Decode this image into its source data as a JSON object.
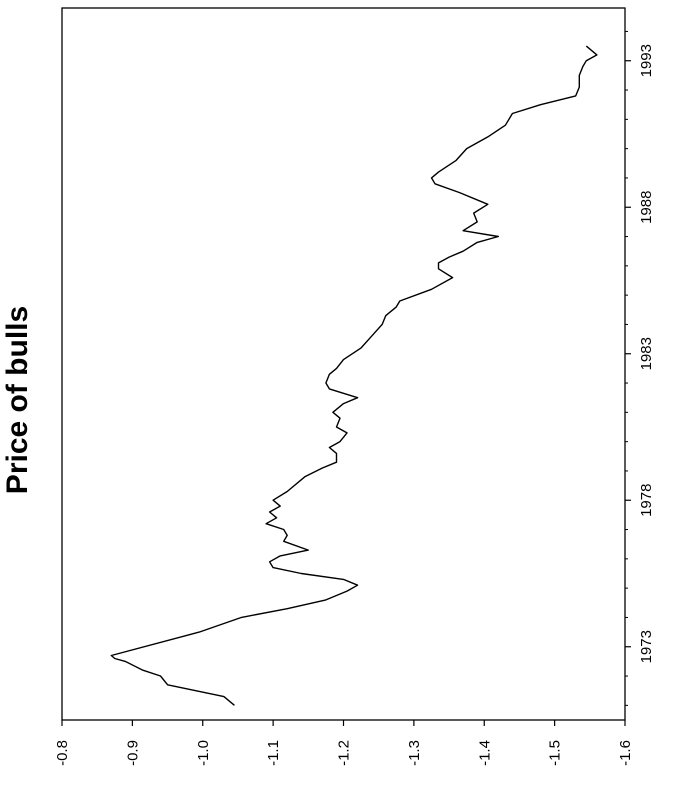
{
  "chart_data": {
    "type": "line",
    "title": "Price of bulls",
    "orientation": "rotated-90-ccw",
    "xlabel": "",
    "ylabel": "",
    "x_ticks": [
      1973,
      1978,
      1983,
      1988,
      1993
    ],
    "y_ticks": [
      "-0.8",
      "-0.9",
      "-1.0",
      "-1.1",
      "-1.2",
      "-1.3",
      "-1.4",
      "-1.5",
      "-1.6"
    ],
    "xlim": [
      1970.5,
      1994.8
    ],
    "ylim": [
      -1.6,
      -0.8
    ],
    "grid": false,
    "line_color": "#000000",
    "series": [
      {
        "x": [
          1971.0,
          1971.3,
          1971.7,
          1972.0,
          1972.2,
          1972.5,
          1972.6,
          1972.7,
          1973.5,
          1974.0,
          1974.3,
          1974.6,
          1974.9,
          1975.1,
          1975.3,
          1975.5,
          1975.7,
          1975.9,
          1976.1,
          1976.3,
          1976.6,
          1976.8,
          1977.0,
          1977.2,
          1977.4,
          1977.6,
          1977.8,
          1978.0,
          1978.3,
          1978.8,
          1979.1,
          1979.3,
          1979.6,
          1979.8,
          1980.0,
          1980.3,
          1980.5,
          1980.8,
          1981.0,
          1981.3,
          1981.5,
          1981.8,
          1982.0,
          1982.3,
          1982.5,
          1982.8,
          1983.2,
          1983.6,
          1984.0,
          1984.3,
          1984.6,
          1984.8,
          1985.2,
          1985.6,
          1985.9,
          1986.1,
          1986.3,
          1986.5,
          1986.8,
          1987.0,
          1987.2,
          1987.5,
          1987.8,
          1988.1,
          1988.5,
          1988.8,
          1989.0,
          1989.2,
          1989.6,
          1990.0,
          1990.4,
          1990.8,
          1991.2,
          1991.5,
          1991.8,
          1992.1,
          1992.5,
          1992.8,
          1993.0,
          1993.2,
          1993.5
        ],
        "y": [
          -1.045,
          -1.03,
          -0.95,
          -0.94,
          -0.915,
          -0.89,
          -0.875,
          -0.87,
          -0.995,
          -1.055,
          -1.12,
          -1.175,
          -1.205,
          -1.22,
          -1.2,
          -1.14,
          -1.1,
          -1.095,
          -1.11,
          -1.15,
          -1.115,
          -1.12,
          -1.115,
          -1.09,
          -1.105,
          -1.095,
          -1.11,
          -1.1,
          -1.12,
          -1.145,
          -1.17,
          -1.19,
          -1.19,
          -1.18,
          -1.195,
          -1.205,
          -1.19,
          -1.195,
          -1.185,
          -1.2,
          -1.22,
          -1.18,
          -1.175,
          -1.18,
          -1.19,
          -1.2,
          -1.225,
          -1.24,
          -1.255,
          -1.26,
          -1.275,
          -1.28,
          -1.325,
          -1.355,
          -1.335,
          -1.335,
          -1.35,
          -1.37,
          -1.39,
          -1.42,
          -1.37,
          -1.39,
          -1.385,
          -1.405,
          -1.365,
          -1.33,
          -1.325,
          -1.335,
          -1.36,
          -1.375,
          -1.405,
          -1.43,
          -1.44,
          -1.48,
          -1.53,
          -1.535,
          -1.535,
          -1.54,
          -1.545,
          -1.56,
          -1.545
        ]
      }
    ]
  }
}
